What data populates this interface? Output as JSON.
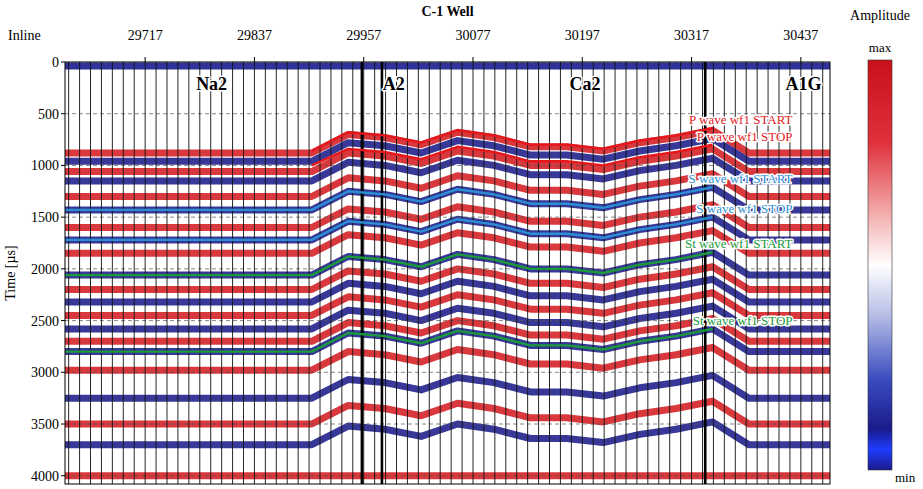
{
  "chart_data": {
    "type": "seismic",
    "title": "C-1 Well",
    "x_label": "Inline",
    "y_label": "Time [µs]",
    "xlim": [
      29629,
      30469
    ],
    "ylim": [
      0,
      4080
    ],
    "xticks": [
      29717,
      29837,
      29957,
      30077,
      30197,
      30317,
      30437
    ],
    "yticks": [
      0,
      500,
      1000,
      1500,
      2000,
      2500,
      3000,
      3500,
      4000
    ],
    "grid": true,
    "trace_spacing": 12,
    "boundaries": [
      29955,
      29977,
      30332
    ],
    "x": [
      29629,
      29900,
      29940,
      29980,
      30020,
      30060,
      30100,
      30140,
      30180,
      30220,
      30260,
      30300,
      30340,
      30380,
      30469
    ],
    "reflectors": [
      {
        "color": "#14148c",
        "values": [
          40,
          40,
          40,
          40,
          40,
          40,
          40,
          40,
          40,
          40,
          40,
          40,
          40,
          40,
          40
        ]
      },
      {
        "color": "#d41c22",
        "values": [
          880,
          880,
          700,
          730,
          800,
          680,
          730,
          820,
          820,
          860,
          780,
          730,
          660,
          880,
          880
        ]
      },
      {
        "color": "#1c1c8a",
        "values": [
          960,
          960,
          780,
          810,
          880,
          760,
          810,
          900,
          900,
          940,
          860,
          810,
          740,
          960,
          960
        ]
      },
      {
        "color": "#d41c22",
        "values": [
          1060,
          1060,
          880,
          910,
          980,
          860,
          910,
          1000,
          1000,
          1040,
          960,
          910,
          840,
          1060,
          1060
        ]
      },
      {
        "color": "#1c1c8a",
        "values": [
          1150,
          1150,
          970,
          1000,
          1070,
          950,
          1000,
          1090,
          1090,
          1130,
          1050,
          1000,
          930,
          1150,
          1150
        ]
      },
      {
        "color": "#d41c22",
        "values": [
          1300,
          1300,
          1120,
          1150,
          1220,
          1100,
          1150,
          1240,
          1240,
          1280,
          1200,
          1150,
          1080,
          1300,
          1300
        ]
      },
      {
        "color": "#1c1c8a",
        "values": [
          1430,
          1430,
          1250,
          1280,
          1350,
          1230,
          1280,
          1370,
          1370,
          1410,
          1330,
          1280,
          1210,
          1430,
          1430
        ]
      },
      {
        "color": "#d41c22",
        "values": [
          1600,
          1600,
          1420,
          1450,
          1520,
          1400,
          1450,
          1540,
          1540,
          1580,
          1500,
          1450,
          1380,
          1600,
          1600
        ]
      },
      {
        "color": "#1c1c8a",
        "values": [
          1720,
          1720,
          1540,
          1570,
          1640,
          1520,
          1570,
          1660,
          1660,
          1700,
          1620,
          1570,
          1500,
          1720,
          1720
        ]
      },
      {
        "color": "#d41c22",
        "values": [
          1850,
          1850,
          1670,
          1700,
          1770,
          1650,
          1700,
          1790,
          1790,
          1830,
          1750,
          1700,
          1630,
          1850,
          1850
        ]
      },
      {
        "color": "#1c1c8a",
        "values": [
          2060,
          2060,
          1880,
          1910,
          1980,
          1860,
          1910,
          2000,
          2000,
          2040,
          1960,
          1910,
          1840,
          2060,
          2060
        ]
      },
      {
        "color": "#d41c22",
        "values": [
          2200,
          2200,
          2020,
          2050,
          2120,
          2000,
          2050,
          2140,
          2140,
          2180,
          2100,
          2050,
          1980,
          2200,
          2200
        ]
      },
      {
        "color": "#1c1c8a",
        "values": [
          2320,
          2320,
          2140,
          2170,
          2240,
          2120,
          2170,
          2260,
          2260,
          2300,
          2220,
          2170,
          2100,
          2320,
          2320
        ]
      },
      {
        "color": "#d41c22",
        "values": [
          2450,
          2450,
          2270,
          2300,
          2370,
          2250,
          2300,
          2390,
          2390,
          2430,
          2350,
          2300,
          2230,
          2450,
          2450
        ]
      },
      {
        "color": "#1c1c8a",
        "values": [
          2580,
          2580,
          2400,
          2430,
          2500,
          2380,
          2430,
          2520,
          2520,
          2560,
          2480,
          2430,
          2360,
          2580,
          2580
        ]
      },
      {
        "color": "#d41c22",
        "values": [
          2700,
          2700,
          2520,
          2550,
          2620,
          2500,
          2550,
          2640,
          2640,
          2680,
          2600,
          2550,
          2480,
          2700,
          2700
        ]
      },
      {
        "color": "#1c1c8a",
        "values": [
          2800,
          2800,
          2620,
          2650,
          2720,
          2600,
          2650,
          2740,
          2740,
          2780,
          2700,
          2650,
          2580,
          2800,
          2800
        ]
      },
      {
        "color": "#d41c22",
        "values": [
          2980,
          2980,
          2800,
          2830,
          2900,
          2780,
          2830,
          2920,
          2920,
          2960,
          2880,
          2830,
          2760,
          2980,
          2980
        ]
      },
      {
        "color": "#1c1c8a",
        "values": [
          3250,
          3250,
          3070,
          3100,
          3170,
          3050,
          3100,
          3190,
          3190,
          3230,
          3150,
          3100,
          3030,
          3250,
          3250
        ]
      },
      {
        "color": "#d41c22",
        "values": [
          3500,
          3500,
          3320,
          3350,
          3420,
          3300,
          3350,
          3440,
          3440,
          3480,
          3400,
          3350,
          3280,
          3500,
          3500
        ]
      },
      {
        "color": "#1c1c8a",
        "values": [
          3700,
          3700,
          3520,
          3550,
          3620,
          3500,
          3550,
          3640,
          3640,
          3680,
          3600,
          3550,
          3480,
          3700,
          3700
        ]
      },
      {
        "color": "#d41c22",
        "values": [
          4000,
          4000,
          4000,
          4000,
          4000,
          4000,
          4000,
          4000,
          4000,
          4000,
          4000,
          4000,
          4000,
          4000,
          4000
        ]
      }
    ],
    "series": [
      {
        "name": "P wave wf1 START",
        "color": "#e3171c",
        "values": [
          null,
          860,
          680,
          710,
          780,
          660,
          710,
          800,
          800,
          840,
          760,
          710,
          640,
          null,
          null
        ]
      },
      {
        "name": "P wave wf1 STOP",
        "color": "#e3171c",
        "values": [
          null,
          1000,
          840,
          870,
          940,
          820,
          870,
          960,
          960,
          1000,
          920,
          870,
          800,
          null,
          null
        ]
      },
      {
        "name": "S wave wf1 START",
        "color": "#2b8fd6",
        "values": [
          1430,
          1430,
          1250,
          1280,
          1350,
          1230,
          1280,
          1370,
          1370,
          1410,
          1330,
          1280,
          1210,
          null,
          null
        ]
      },
      {
        "name": "S wave wf1 STOP",
        "color": "#2b8fd6",
        "values": [
          1720,
          1720,
          1540,
          1570,
          1640,
          1520,
          1570,
          1660,
          1660,
          1700,
          1620,
          1570,
          1500,
          null,
          null
        ]
      },
      {
        "name": "St wave wf1 START",
        "color": "#1b9a3c",
        "values": [
          2060,
          2060,
          1880,
          1910,
          1980,
          1860,
          1910,
          2000,
          2000,
          2040,
          1960,
          1910,
          1840,
          null,
          null
        ]
      },
      {
        "name": "St wave wf1 STOP",
        "color": "#1b9a3c",
        "values": [
          2800,
          2800,
          2620,
          2650,
          2720,
          2600,
          2650,
          2740,
          2740,
          2780,
          2700,
          2650,
          2580,
          null,
          null
        ]
      }
    ],
    "regions": [
      {
        "label": "Na2",
        "inline": 29790
      },
      {
        "label": "A2",
        "inline": 29990
      },
      {
        "label": "Ca2",
        "inline": 30200
      },
      {
        "label": "A1G",
        "inline": 30440
      }
    ],
    "colorbar": {
      "title": "Amplitude",
      "max_label": "max",
      "min_label": "min"
    }
  }
}
